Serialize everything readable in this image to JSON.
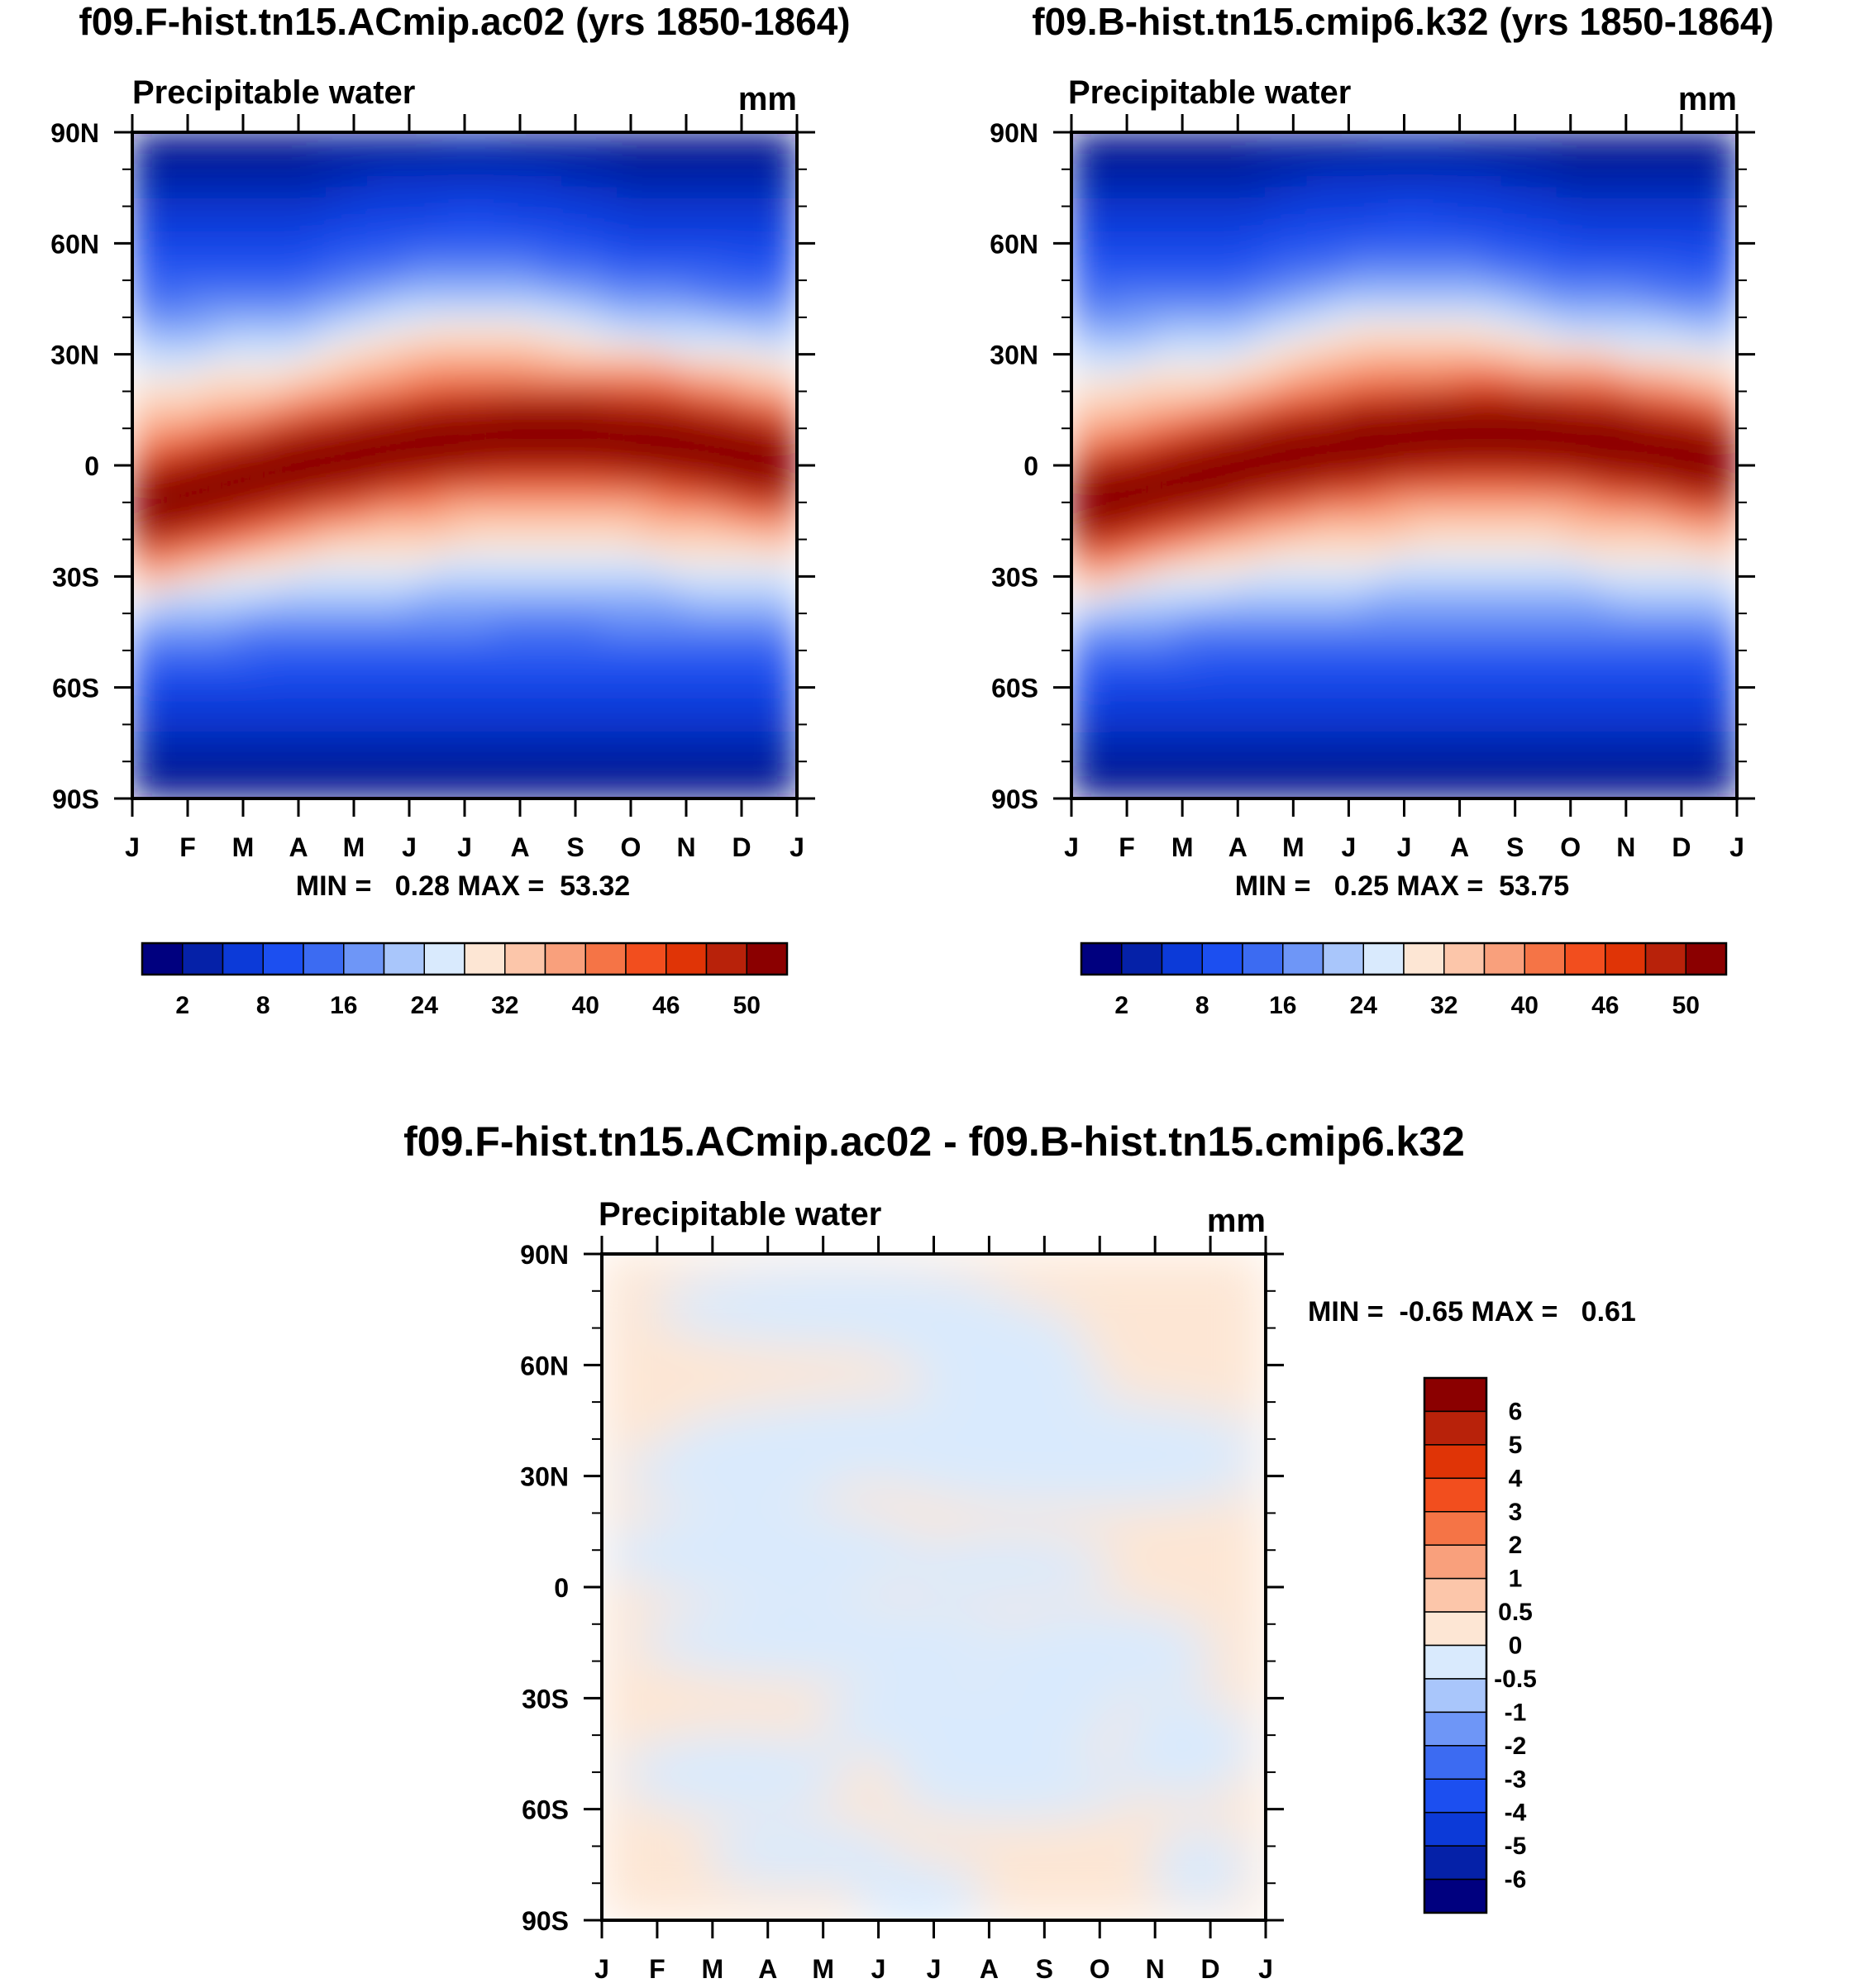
{
  "chart_data": [
    {
      "type": "heatmap",
      "title": "f09.F-hist.tn15.ACmip.ac02 (yrs 1850-1864)",
      "subtitle": "Precipitable water",
      "units": "mm",
      "x_ticks": [
        "J",
        "F",
        "M",
        "A",
        "M",
        "J",
        "J",
        "A",
        "S",
        "O",
        "N",
        "D",
        "J"
      ],
      "y_ticks": [
        "90N",
        "60N",
        "30N",
        "0",
        "30S",
        "60S",
        "90S"
      ],
      "y_range": [
        -90,
        90
      ],
      "stats": "MIN =   0.28 MAX =  53.32",
      "min": 0.28,
      "max": 53.32,
      "colorbar_labels": [
        "2",
        "8",
        "16",
        "24",
        "32",
        "40",
        "46",
        "50"
      ],
      "levels": [
        0,
        2,
        4,
        8,
        12,
        16,
        20,
        24,
        28,
        32,
        36,
        40,
        44,
        46,
        48,
        50,
        54
      ]
    },
    {
      "type": "heatmap",
      "title": "f09.B-hist.tn15.cmip6.k32 (yrs 1850-1864)",
      "subtitle": "Precipitable water",
      "units": "mm",
      "x_ticks": [
        "J",
        "F",
        "M",
        "A",
        "M",
        "J",
        "J",
        "A",
        "S",
        "O",
        "N",
        "D",
        "J"
      ],
      "y_ticks": [
        "90N",
        "60N",
        "30N",
        "0",
        "30S",
        "60S",
        "90S"
      ],
      "y_range": [
        -90,
        90
      ],
      "stats": "MIN =   0.25 MAX =  53.75",
      "min": 0.25,
      "max": 53.75,
      "colorbar_labels": [
        "2",
        "8",
        "16",
        "24",
        "32",
        "40",
        "46",
        "50"
      ],
      "levels": [
        0,
        2,
        4,
        8,
        12,
        16,
        20,
        24,
        28,
        32,
        36,
        40,
        44,
        46,
        48,
        50,
        54
      ]
    },
    {
      "type": "heatmap",
      "title": "f09.F-hist.tn15.ACmip.ac02 - f09.B-hist.tn15.cmip6.k32",
      "subtitle": "Precipitable water",
      "units": "mm",
      "x_ticks": [
        "J",
        "F",
        "M",
        "A",
        "M",
        "J",
        "J",
        "A",
        "S",
        "O",
        "N",
        "D",
        "J"
      ],
      "y_ticks": [
        "90N",
        "60N",
        "30N",
        "0",
        "30S",
        "60S",
        "90S"
      ],
      "y_range": [
        -90,
        90
      ],
      "stats": "MIN =  -0.65 MAX =   0.61",
      "min": -0.65,
      "max": 0.61,
      "colorbar_labels": [
        "6",
        "5",
        "4",
        "3",
        "2",
        "1",
        "0.5",
        "0",
        "-0.5",
        "-1",
        "-2",
        "-3",
        "-4",
        "-5",
        "-6"
      ]
    }
  ],
  "colors": {
    "sequential": [
      "#00007f",
      "#0521a8",
      "#0c3ad8",
      "#1c4ff0",
      "#3c6bf2",
      "#6e96f7",
      "#a9c6fb",
      "#d9eafd",
      "#fde6d4",
      "#fcc6aa",
      "#f9a07c",
      "#f57446",
      "#f24e1e",
      "#e03406",
      "#b8220a",
      "#8b0000"
    ],
    "diff": [
      "#00007f",
      "#0521a8",
      "#0c3ad8",
      "#1c4ff0",
      "#3c6bf2",
      "#6e96f7",
      "#a9c6fb",
      "#d9eafd",
      "#fde6d4",
      "#fcc6aa",
      "#f9a07c",
      "#f57446",
      "#f24e1e",
      "#e03406",
      "#b8220a",
      "#8b0000"
    ]
  }
}
